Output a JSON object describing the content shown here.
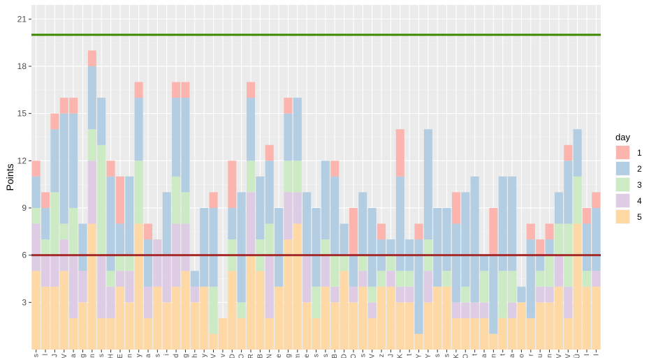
{
  "chart_data": {
    "type": "bar",
    "stacked": true,
    "title": "",
    "xlabel": "",
    "ylabel": "Points",
    "ylim": [
      0,
      21.9
    ],
    "yticks": [
      3,
      6,
      9,
      12,
      15,
      18,
      21
    ],
    "grid": true,
    "legend": {
      "title": "day",
      "position": "right",
      "entries": [
        "1",
        "2",
        "3",
        "4",
        "5"
      ]
    },
    "categories": [
      "s",
      "l",
      "J",
      "V",
      "a",
      "g",
      "n",
      "s",
      "H",
      "E",
      "n",
      "y",
      "a",
      "s",
      "i",
      "d",
      "g",
      "h",
      "y",
      "V",
      "v",
      "D",
      "O",
      "R",
      "B",
      "N",
      "e",
      "g",
      "m",
      "e",
      "s",
      "s",
      "B",
      "D",
      "O",
      "s",
      "V",
      "z",
      "J",
      "K",
      "t",
      "Y",
      "Y",
      "s",
      "s",
      "K",
      "O",
      "t",
      "a",
      "n",
      "t",
      "a",
      "o",
      "r",
      "u",
      "n",
      "V",
      "V",
      "Ü",
      "I",
      "I"
    ],
    "series": [
      {
        "name": "5",
        "color": "#FED9A6",
        "values": [
          5,
          4,
          4,
          5,
          2,
          3,
          8,
          2,
          2,
          4,
          3,
          8,
          2,
          4,
          3,
          4,
          5,
          3,
          4,
          1,
          2,
          5,
          2,
          6,
          5,
          2,
          4,
          7,
          8,
          3,
          2,
          4,
          3,
          5,
          3,
          4,
          2,
          4,
          4,
          3,
          3,
          1,
          3,
          4,
          4,
          2,
          2,
          2,
          2,
          1,
          2,
          2,
          3,
          2,
          3,
          3,
          4,
          2,
          8,
          4,
          4
        ]
      },
      {
        "name": "4",
        "color": "#DECBE4",
        "values": [
          3,
          2,
          2,
          2,
          4,
          2,
          4,
          4,
          2,
          1,
          2,
          0,
          2,
          3,
          3,
          4,
          3,
          1,
          0,
          0,
          0,
          0,
          0,
          4,
          0,
          4,
          0,
          3,
          2,
          3,
          0,
          2,
          1,
          0,
          1,
          1,
          1,
          0,
          1,
          1,
          1,
          0,
          2,
          0,
          0,
          1,
          1,
          1,
          1,
          0,
          0,
          1,
          0,
          0,
          1,
          1,
          2,
          2,
          0,
          0,
          1
        ]
      },
      {
        "name": "3",
        "color": "#CCEBC5",
        "values": [
          1,
          1,
          4,
          1,
          3,
          0,
          2,
          7,
          1,
          1,
          1,
          4,
          0,
          0,
          0,
          3,
          2,
          0,
          0,
          3,
          0,
          2,
          1,
          2,
          2,
          2,
          0,
          2,
          2,
          0,
          2,
          1,
          2,
          1,
          0,
          1,
          1,
          1,
          1,
          1,
          1,
          0,
          2,
          0,
          1,
          0,
          1,
          0,
          2,
          0,
          3,
          2,
          0,
          0,
          1,
          2,
          2,
          4,
          3,
          1,
          0
        ]
      },
      {
        "name": "2",
        "color": "#B3CDE3",
        "values": [
          2,
          2,
          4,
          7,
          6,
          3,
          4,
          3,
          6,
          2,
          5,
          4,
          3,
          0,
          4,
          5,
          6,
          1,
          5,
          5,
          0,
          2,
          7,
          4,
          4,
          4,
          5,
          3,
          4,
          4,
          5,
          5,
          5,
          2,
          2,
          4,
          5,
          2,
          1,
          6,
          2,
          6,
          7,
          5,
          4,
          5,
          6,
          8,
          1,
          5,
          6,
          6,
          1,
          5,
          1,
          1,
          2,
          4,
          3,
          3,
          4
        ]
      },
      {
        "name": "1",
        "color": "#FBB4AE",
        "values": [
          1,
          1,
          1,
          1,
          1,
          0,
          1,
          0,
          1,
          3,
          0,
          1,
          1,
          0,
          0,
          1,
          1,
          0,
          0,
          1,
          0,
          3,
          0,
          1,
          0,
          1,
          0,
          1,
          0,
          0,
          0,
          0,
          1,
          0,
          3,
          0,
          0,
          1,
          0,
          3,
          0,
          1,
          0,
          0,
          0,
          2,
          0,
          0,
          0,
          3,
          0,
          0,
          0,
          1,
          1,
          1,
          0,
          1,
          0,
          1,
          1
        ]
      }
    ],
    "hlines": [
      {
        "y": 20,
        "color": "#3A8A00"
      },
      {
        "y": 6,
        "color": "#A52A2A"
      }
    ]
  }
}
